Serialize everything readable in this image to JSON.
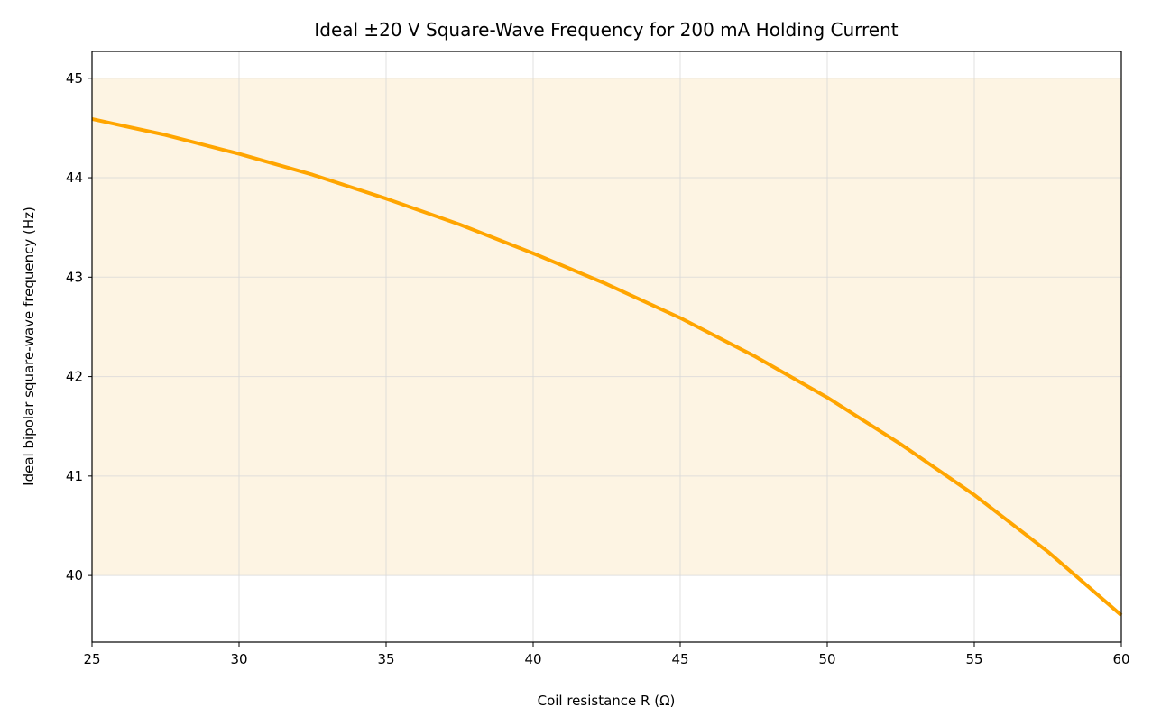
{
  "chart_data": {
    "type": "line",
    "title": "Ideal ±20 V Square-Wave Frequency for 200 mA Holding Current",
    "xlabel": "Coil resistance R (Ω)",
    "ylabel": "Ideal bipolar square-wave frequency (Hz)",
    "xlim": [
      25,
      60
    ],
    "ylim": [
      39.33,
      45.27
    ],
    "xticks": [
      "25",
      "30",
      "35",
      "40",
      "45",
      "50",
      "55",
      "60"
    ],
    "yticks": [
      "40",
      "41",
      "42",
      "43",
      "44",
      "45"
    ],
    "grid": true,
    "shaded_band": {
      "y_from": 40,
      "y_to": 45,
      "color": "#fdf4e3"
    },
    "series": [
      {
        "color": "#ffa500",
        "x": [
          25,
          27.5,
          30,
          32.5,
          35,
          37.5,
          40,
          42.5,
          45,
          47.5,
          50,
          52.5,
          55,
          57.5,
          60
        ],
        "y": [
          44.59,
          44.43,
          44.24,
          44.03,
          43.79,
          43.53,
          43.24,
          42.93,
          42.59,
          42.21,
          41.79,
          41.32,
          40.81,
          40.24,
          39.6
        ]
      }
    ]
  }
}
